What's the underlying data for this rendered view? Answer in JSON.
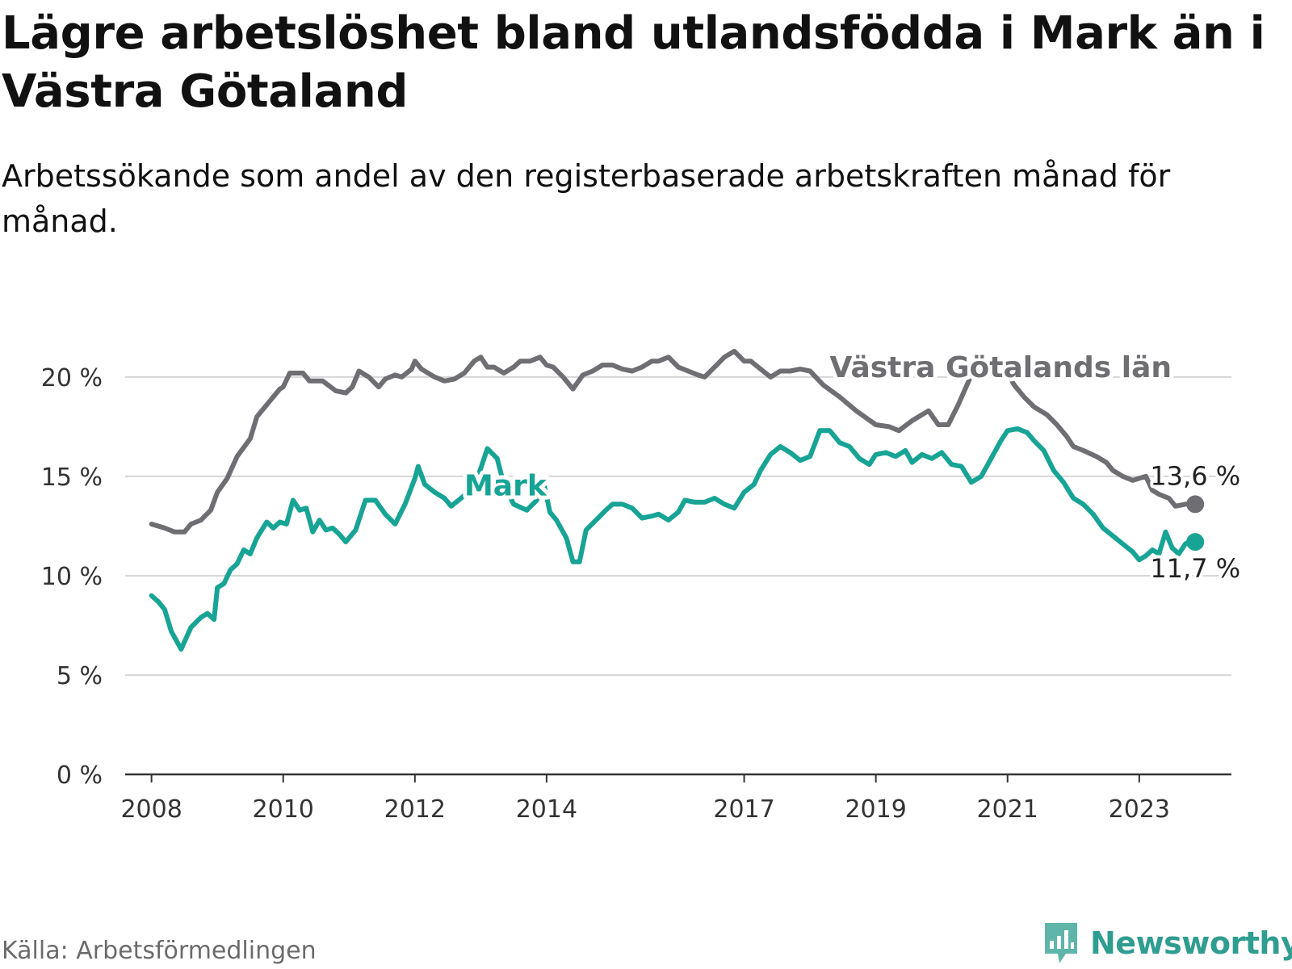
{
  "title": "Lägre arbetslöshet bland utlandsfödda i Mark än i Västra Götaland",
  "subtitle": "Arbetssökande som andel av den registerbaserade arbetskraften månad för månad.",
  "source": "Källa: Arbetsförmedlingen",
  "brand": {
    "name": "Newsworthy",
    "icon": "bar-chart-logo-icon",
    "color": "#2f9d90"
  },
  "chart_data": {
    "type": "line",
    "unit": "%",
    "ylim": [
      0,
      21.5
    ],
    "xlim": [
      2007.6,
      2024.4
    ],
    "grid": true,
    "y_ticks": [
      {
        "value": 0,
        "label": "0 %"
      },
      {
        "value": 5,
        "label": "5 %"
      },
      {
        "value": 10,
        "label": "10 %"
      },
      {
        "value": 15,
        "label": "15 %"
      },
      {
        "value": 20,
        "label": "20 %"
      }
    ],
    "x_ticks": [
      {
        "value": 2008,
        "label": "2008"
      },
      {
        "value": 2010,
        "label": "2010"
      },
      {
        "value": 2012,
        "label": "2012"
      },
      {
        "value": 2014,
        "label": "2014"
      },
      {
        "value": 2017,
        "label": "2017"
      },
      {
        "value": 2019,
        "label": "2019"
      },
      {
        "value": 2021,
        "label": "2021"
      },
      {
        "value": 2023,
        "label": "2023"
      }
    ],
    "series": [
      {
        "name": "Västra Götalands län",
        "color": "#6e6e73",
        "label_at": [
          2018.3,
          20.0
        ],
        "end_label": "13,6 %",
        "points": [
          [
            2008.0,
            12.6
          ],
          [
            2008.2,
            12.4
          ],
          [
            2008.35,
            12.2
          ],
          [
            2008.5,
            12.2
          ],
          [
            2008.6,
            12.6
          ],
          [
            2008.75,
            12.8
          ],
          [
            2008.9,
            13.3
          ],
          [
            2009.0,
            14.2
          ],
          [
            2009.15,
            14.9
          ],
          [
            2009.3,
            16.0
          ],
          [
            2009.5,
            16.9
          ],
          [
            2009.6,
            18.0
          ],
          [
            2009.8,
            18.8
          ],
          [
            2009.95,
            19.4
          ],
          [
            2010.0,
            19.5
          ],
          [
            2010.1,
            20.2
          ],
          [
            2010.3,
            20.2
          ],
          [
            2010.4,
            19.8
          ],
          [
            2010.6,
            19.8
          ],
          [
            2010.8,
            19.3
          ],
          [
            2010.95,
            19.2
          ],
          [
            2011.05,
            19.5
          ],
          [
            2011.15,
            20.3
          ],
          [
            2011.3,
            20.0
          ],
          [
            2011.45,
            19.5
          ],
          [
            2011.55,
            19.9
          ],
          [
            2011.7,
            20.1
          ],
          [
            2011.8,
            20.0
          ],
          [
            2011.95,
            20.4
          ],
          [
            2012.0,
            20.8
          ],
          [
            2012.1,
            20.4
          ],
          [
            2012.3,
            20.0
          ],
          [
            2012.45,
            19.8
          ],
          [
            2012.6,
            19.9
          ],
          [
            2012.75,
            20.2
          ],
          [
            2012.9,
            20.8
          ],
          [
            2013.0,
            21.0
          ],
          [
            2013.1,
            20.5
          ],
          [
            2013.2,
            20.5
          ],
          [
            2013.35,
            20.2
          ],
          [
            2013.5,
            20.5
          ],
          [
            2013.6,
            20.8
          ],
          [
            2013.75,
            20.8
          ],
          [
            2013.9,
            21.0
          ],
          [
            2014.0,
            20.6
          ],
          [
            2014.1,
            20.5
          ],
          [
            2014.25,
            20.0
          ],
          [
            2014.4,
            19.4
          ],
          [
            2014.55,
            20.1
          ],
          [
            2014.7,
            20.3
          ],
          [
            2014.85,
            20.6
          ],
          [
            2015.0,
            20.6
          ],
          [
            2015.15,
            20.4
          ],
          [
            2015.3,
            20.3
          ],
          [
            2015.45,
            20.5
          ],
          [
            2015.6,
            20.8
          ],
          [
            2015.7,
            20.8
          ],
          [
            2015.85,
            21.0
          ],
          [
            2016.0,
            20.5
          ],
          [
            2016.15,
            20.3
          ],
          [
            2016.3,
            20.1
          ],
          [
            2016.4,
            20.0
          ],
          [
            2016.55,
            20.5
          ],
          [
            2016.7,
            21.0
          ],
          [
            2016.85,
            21.3
          ],
          [
            2017.0,
            20.8
          ],
          [
            2017.1,
            20.8
          ],
          [
            2017.25,
            20.4
          ],
          [
            2017.4,
            20.0
          ],
          [
            2017.55,
            20.3
          ],
          [
            2017.7,
            20.3
          ],
          [
            2017.85,
            20.4
          ],
          [
            2018.0,
            20.3
          ],
          [
            2018.2,
            19.6
          ],
          [
            2018.45,
            19.0
          ],
          [
            2018.7,
            18.3
          ],
          [
            2019.0,
            17.6
          ],
          [
            2019.2,
            17.5
          ],
          [
            2019.35,
            17.3
          ],
          [
            2019.55,
            17.8
          ],
          [
            2019.8,
            18.3
          ],
          [
            2019.95,
            17.6
          ],
          [
            2020.1,
            17.6
          ],
          [
            2020.25,
            18.6
          ],
          [
            2020.45,
            20.1
          ],
          [
            2020.55,
            20.6
          ],
          [
            2020.7,
            20.5
          ],
          [
            2020.85,
            20.3
          ],
          [
            2021.0,
            20.2
          ],
          [
            2021.1,
            19.6
          ],
          [
            2021.25,
            19.0
          ],
          [
            2021.4,
            18.5
          ],
          [
            2021.6,
            18.1
          ],
          [
            2021.75,
            17.6
          ],
          [
            2021.9,
            17.0
          ],
          [
            2022.0,
            16.5
          ],
          [
            2022.15,
            16.3
          ],
          [
            2022.35,
            16.0
          ],
          [
            2022.5,
            15.7
          ],
          [
            2022.6,
            15.3
          ],
          [
            2022.75,
            15.0
          ],
          [
            2022.9,
            14.8
          ],
          [
            2023.0,
            14.9
          ],
          [
            2023.1,
            15.0
          ],
          [
            2023.2,
            14.3
          ],
          [
            2023.3,
            14.1
          ],
          [
            2023.45,
            13.9
          ],
          [
            2023.55,
            13.5
          ],
          [
            2023.7,
            13.6
          ],
          [
            2023.85,
            13.6
          ]
        ]
      },
      {
        "name": "Mark",
        "color": "#17a495",
        "label_at": [
          2012.75,
          14.05
        ],
        "end_label": "11,7 %",
        "points": [
          [
            2008.0,
            9.0
          ],
          [
            2008.1,
            8.7
          ],
          [
            2008.2,
            8.3
          ],
          [
            2008.3,
            7.2
          ],
          [
            2008.45,
            6.3
          ],
          [
            2008.6,
            7.4
          ],
          [
            2008.75,
            7.9
          ],
          [
            2008.85,
            8.1
          ],
          [
            2008.95,
            7.8
          ],
          [
            2009.0,
            9.4
          ],
          [
            2009.1,
            9.6
          ],
          [
            2009.2,
            10.3
          ],
          [
            2009.3,
            10.6
          ],
          [
            2009.4,
            11.3
          ],
          [
            2009.5,
            11.1
          ],
          [
            2009.6,
            11.9
          ],
          [
            2009.75,
            12.7
          ],
          [
            2009.85,
            12.4
          ],
          [
            2009.95,
            12.7
          ],
          [
            2010.05,
            12.6
          ],
          [
            2010.15,
            13.8
          ],
          [
            2010.25,
            13.3
          ],
          [
            2010.35,
            13.4
          ],
          [
            2010.45,
            12.2
          ],
          [
            2010.55,
            12.8
          ],
          [
            2010.65,
            12.3
          ],
          [
            2010.75,
            12.4
          ],
          [
            2010.85,
            12.1
          ],
          [
            2010.95,
            11.7
          ],
          [
            2011.1,
            12.3
          ],
          [
            2011.25,
            13.8
          ],
          [
            2011.4,
            13.8
          ],
          [
            2011.55,
            13.1
          ],
          [
            2011.7,
            12.6
          ],
          [
            2011.85,
            13.6
          ],
          [
            2012.0,
            14.9
          ],
          [
            2012.05,
            15.5
          ],
          [
            2012.15,
            14.6
          ],
          [
            2012.3,
            14.2
          ],
          [
            2012.45,
            13.9
          ],
          [
            2012.55,
            13.5
          ],
          [
            2012.7,
            13.9
          ],
          [
            2012.9,
            14.5
          ],
          [
            2013.0,
            15.4
          ],
          [
            2013.1,
            16.4
          ],
          [
            2013.25,
            15.9
          ],
          [
            2013.35,
            14.6
          ],
          [
            2013.5,
            13.6
          ],
          [
            2013.7,
            13.3
          ],
          [
            2013.85,
            13.8
          ],
          [
            2013.95,
            14.8
          ],
          [
            2014.05,
            13.2
          ],
          [
            2014.15,
            12.8
          ],
          [
            2014.3,
            11.9
          ],
          [
            2014.4,
            10.7
          ],
          [
            2014.5,
            10.7
          ],
          [
            2014.6,
            12.3
          ],
          [
            2014.75,
            12.8
          ],
          [
            2014.9,
            13.3
          ],
          [
            2015.0,
            13.6
          ],
          [
            2015.15,
            13.6
          ],
          [
            2015.3,
            13.4
          ],
          [
            2015.45,
            12.9
          ],
          [
            2015.6,
            13.0
          ],
          [
            2015.7,
            13.1
          ],
          [
            2015.85,
            12.8
          ],
          [
            2016.0,
            13.2
          ],
          [
            2016.1,
            13.8
          ],
          [
            2016.25,
            13.7
          ],
          [
            2016.4,
            13.7
          ],
          [
            2016.55,
            13.9
          ],
          [
            2016.7,
            13.6
          ],
          [
            2016.85,
            13.4
          ],
          [
            2017.0,
            14.2
          ],
          [
            2017.15,
            14.6
          ],
          [
            2017.25,
            15.3
          ],
          [
            2017.4,
            16.1
          ],
          [
            2017.55,
            16.5
          ],
          [
            2017.7,
            16.2
          ],
          [
            2017.85,
            15.8
          ],
          [
            2018.0,
            16.0
          ],
          [
            2018.15,
            17.3
          ],
          [
            2018.3,
            17.3
          ],
          [
            2018.45,
            16.7
          ],
          [
            2018.6,
            16.5
          ],
          [
            2018.75,
            15.9
          ],
          [
            2018.9,
            15.6
          ],
          [
            2019.0,
            16.1
          ],
          [
            2019.15,
            16.2
          ],
          [
            2019.3,
            16.0
          ],
          [
            2019.45,
            16.3
          ],
          [
            2019.55,
            15.7
          ],
          [
            2019.7,
            16.1
          ],
          [
            2019.85,
            15.9
          ],
          [
            2020.0,
            16.2
          ],
          [
            2020.15,
            15.6
          ],
          [
            2020.3,
            15.5
          ],
          [
            2020.45,
            14.7
          ],
          [
            2020.6,
            15.0
          ],
          [
            2020.75,
            15.9
          ],
          [
            2020.9,
            16.8
          ],
          [
            2021.0,
            17.3
          ],
          [
            2021.15,
            17.4
          ],
          [
            2021.3,
            17.2
          ],
          [
            2021.4,
            16.8
          ],
          [
            2021.55,
            16.3
          ],
          [
            2021.7,
            15.3
          ],
          [
            2021.85,
            14.7
          ],
          [
            2022.0,
            13.9
          ],
          [
            2022.15,
            13.6
          ],
          [
            2022.3,
            13.1
          ],
          [
            2022.45,
            12.4
          ],
          [
            2022.6,
            12.0
          ],
          [
            2022.75,
            11.6
          ],
          [
            2022.9,
            11.2
          ],
          [
            2023.0,
            10.8
          ],
          [
            2023.1,
            11.0
          ],
          [
            2023.2,
            11.3
          ],
          [
            2023.3,
            11.1
          ],
          [
            2023.4,
            12.2
          ],
          [
            2023.5,
            11.4
          ],
          [
            2023.6,
            11.1
          ],
          [
            2023.7,
            11.6
          ],
          [
            2023.8,
            11.8
          ],
          [
            2023.85,
            11.7
          ]
        ]
      }
    ]
  }
}
